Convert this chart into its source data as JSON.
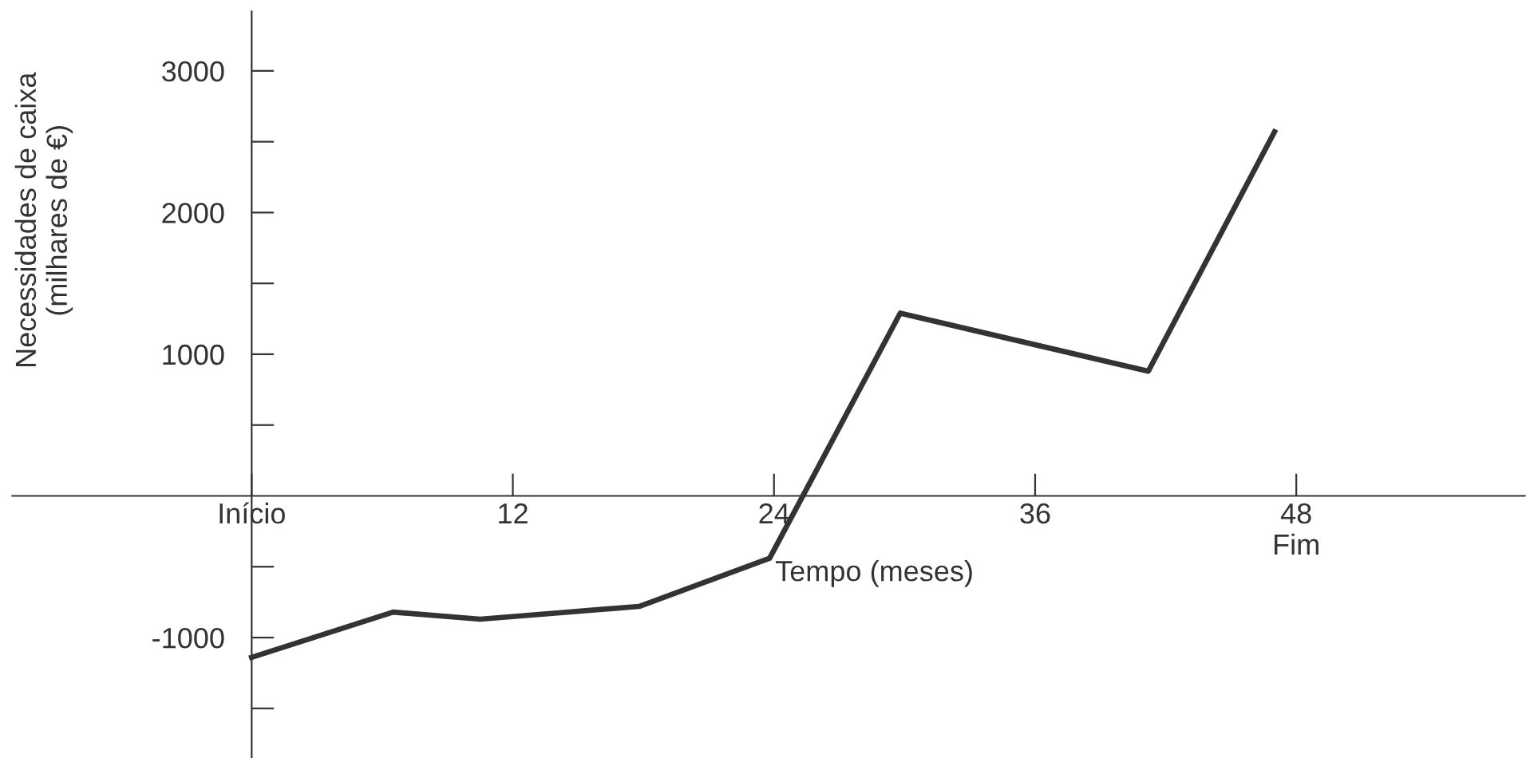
{
  "chart_data": {
    "type": "line",
    "xlabel": "Tempo (meses)",
    "ylabel": "Necessidades de caixa\n(milhares de €)",
    "x": [
      0,
      6.5,
      10.5,
      17.8,
      23.8,
      29.8,
      41.2,
      47.0
    ],
    "series": [
      {
        "color": "#333333",
        "values": [
          -1140,
          -820,
          -870,
          -780,
          -440,
          1290,
          880,
          2570
        ]
      }
    ],
    "xlim": [
      -11,
      58.5
    ],
    "ylim": [
      -1850,
      3420
    ],
    "xticks": [
      {
        "value": 0,
        "label": "Início"
      },
      12,
      24,
      36,
      {
        "value": 48,
        "label": "48\nFim"
      }
    ],
    "yticks": [
      {
        "value": -1500,
        "label": null
      },
      -1000,
      {
        "value": -500,
        "label": null
      },
      {
        "value": 500,
        "label": null
      },
      1000,
      {
        "value": 1500,
        "label": null
      },
      2000,
      {
        "value": 2500,
        "label": null
      },
      3000
    ],
    "grid": false,
    "marker": "none",
    "line_style": "solid"
  }
}
